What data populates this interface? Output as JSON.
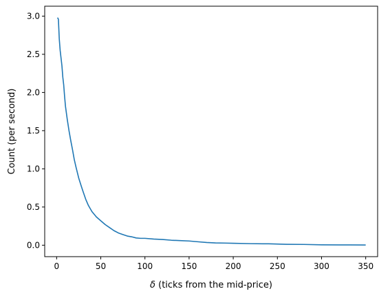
{
  "chart_data": {
    "type": "line",
    "title": "",
    "xlabel": "δ (ticks from the mid-price)",
    "xlabel_symbol": "δ",
    "xlabel_rest": " (ticks from the mid-price)",
    "ylabel": "Count (per second)",
    "xlim": [
      -13.5,
      363.5
    ],
    "ylim": [
      -0.15,
      3.13
    ],
    "xticks": [
      0,
      50,
      100,
      150,
      200,
      250,
      300,
      350
    ],
    "xtick_labels": [
      "0",
      "50",
      "100",
      "150",
      "200",
      "250",
      "300",
      "350"
    ],
    "yticks": [
      0.0,
      0.5,
      1.0,
      1.5,
      2.0,
      2.5,
      3.0
    ],
    "ytick_labels": [
      "0.0",
      "0.5",
      "1.0",
      "1.5",
      "2.0",
      "2.5",
      "3.0"
    ],
    "grid": false,
    "series": [
      {
        "color": "#1f77b4",
        "x": [
          1,
          2,
          3,
          4,
          5,
          6,
          7,
          8,
          9,
          10,
          12,
          14,
          16,
          18,
          20,
          22,
          25,
          28,
          30,
          33,
          36,
          40,
          45,
          50,
          55,
          60,
          65,
          70,
          75,
          80,
          85,
          90,
          95,
          100,
          110,
          120,
          130,
          140,
          150,
          160,
          170,
          180,
          190,
          200,
          220,
          240,
          260,
          280,
          300,
          320,
          350
        ],
        "y": [
          2.98,
          2.96,
          2.7,
          2.55,
          2.45,
          2.35,
          2.2,
          2.1,
          1.95,
          1.82,
          1.65,
          1.5,
          1.37,
          1.25,
          1.12,
          1.02,
          0.88,
          0.77,
          0.7,
          0.6,
          0.52,
          0.44,
          0.37,
          0.32,
          0.27,
          0.23,
          0.19,
          0.16,
          0.14,
          0.12,
          0.11,
          0.095,
          0.09,
          0.09,
          0.08,
          0.075,
          0.065,
          0.06,
          0.055,
          0.045,
          0.035,
          0.03,
          0.028,
          0.025,
          0.02,
          0.018,
          0.012,
          0.01,
          0.005,
          0.004,
          0.003
        ]
      }
    ]
  }
}
